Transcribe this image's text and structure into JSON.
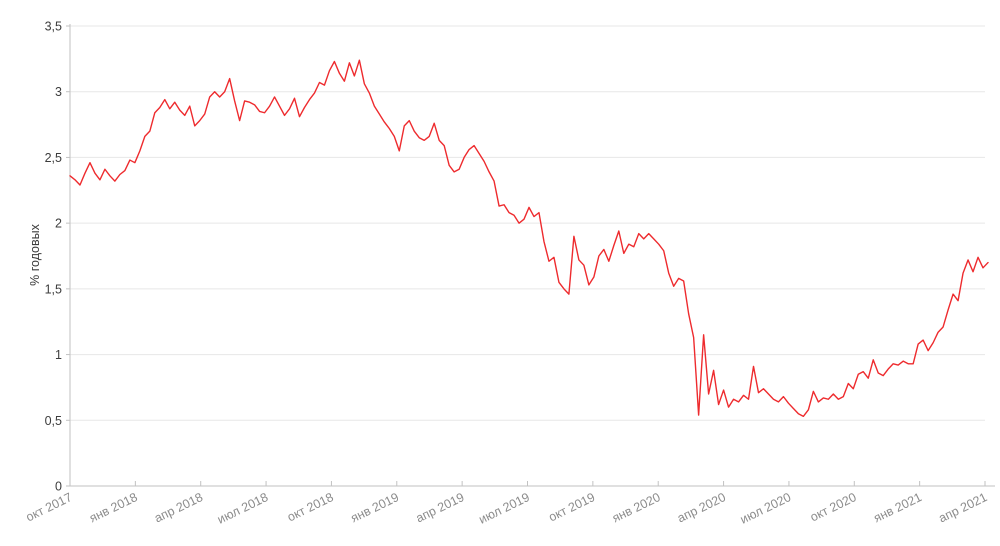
{
  "chart_data": {
    "type": "line",
    "title": "",
    "xlabel": "",
    "ylabel": "% годовых",
    "ylim": [
      0,
      3.5
    ],
    "y_ticks": [
      0,
      0.5,
      1,
      1.5,
      2,
      2.5,
      3,
      3.5
    ],
    "y_tick_labels": [
      "0",
      "0,5",
      "1",
      "1,5",
      "2",
      "2,5",
      "3",
      "3,5"
    ],
    "x_tick_labels": [
      "окт 2017",
      "янв 2018",
      "апр 2018",
      "июл 2018",
      "окт 2018",
      "янв 2019",
      "апр 2019",
      "июл 2019",
      "окт 2019",
      "янв 2020",
      "апр 2020",
      "июл 2020",
      "окт 2020",
      "янв 2021",
      "апр 2021"
    ],
    "grid": "horizontal",
    "legend": "none",
    "interval": "weekly",
    "values": [
      2.36,
      2.33,
      2.29,
      2.38,
      2.46,
      2.38,
      2.33,
      2.41,
      2.36,
      2.32,
      2.37,
      2.4,
      2.48,
      2.46,
      2.55,
      2.66,
      2.7,
      2.84,
      2.88,
      2.94,
      2.87,
      2.92,
      2.86,
      2.82,
      2.89,
      2.74,
      2.78,
      2.83,
      2.96,
      3.0,
      2.96,
      3.0,
      3.1,
      2.93,
      2.78,
      2.93,
      2.92,
      2.9,
      2.85,
      2.84,
      2.89,
      2.96,
      2.89,
      2.82,
      2.87,
      2.95,
      2.81,
      2.88,
      2.94,
      2.99,
      3.07,
      3.05,
      3.16,
      3.23,
      3.14,
      3.08,
      3.22,
      3.12,
      3.24,
      3.06,
      2.99,
      2.89,
      2.83,
      2.77,
      2.72,
      2.66,
      2.55,
      2.74,
      2.78,
      2.7,
      2.65,
      2.63,
      2.66,
      2.76,
      2.63,
      2.59,
      2.44,
      2.39,
      2.41,
      2.5,
      2.56,
      2.59,
      2.53,
      2.47,
      2.39,
      2.32,
      2.13,
      2.14,
      2.08,
      2.06,
      2.0,
      2.03,
      2.12,
      2.05,
      2.08,
      1.86,
      1.71,
      1.74,
      1.55,
      1.5,
      1.46,
      1.9,
      1.72,
      1.68,
      1.53,
      1.59,
      1.75,
      1.8,
      1.71,
      1.83,
      1.94,
      1.77,
      1.84,
      1.82,
      1.92,
      1.88,
      1.92,
      1.88,
      1.84,
      1.79,
      1.62,
      1.52,
      1.58,
      1.56,
      1.31,
      1.13,
      0.54,
      1.15,
      0.7,
      0.88,
      0.62,
      0.73,
      0.6,
      0.66,
      0.64,
      0.69,
      0.66,
      0.91,
      0.71,
      0.74,
      0.7,
      0.66,
      0.64,
      0.68,
      0.63,
      0.59,
      0.55,
      0.53,
      0.58,
      0.72,
      0.64,
      0.67,
      0.66,
      0.7,
      0.66,
      0.68,
      0.78,
      0.74,
      0.85,
      0.87,
      0.82,
      0.96,
      0.86,
      0.84,
      0.89,
      0.93,
      0.92,
      0.95,
      0.93,
      0.93,
      1.08,
      1.11,
      1.03,
      1.09,
      1.17,
      1.21,
      1.34,
      1.46,
      1.41,
      1.62,
      1.72,
      1.63,
      1.74,
      1.66,
      1.7
    ]
  },
  "colors": {
    "line": "#ee2b2e",
    "grid": "#e7e7e7",
    "axis": "#c2c2c2",
    "y_label_text": "#3c3c3c",
    "x_label_text": "#8c8c8c",
    "background": "#ffffff"
  }
}
